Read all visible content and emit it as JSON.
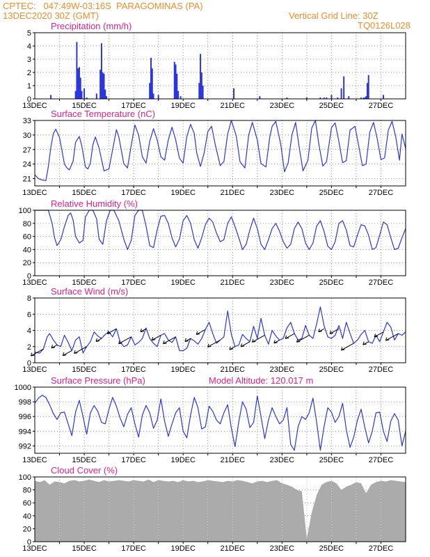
{
  "header": {
    "line1": "CPTEC:   047:49W-03:16S  PARAGOMINAS (PA)",
    "line2": "13DEC2020 30Z (GMT)",
    "grid_note": "Vertical Grid Line: 30Z",
    "code": "TQ0126L028"
  },
  "colors": {
    "header": "#f28c28",
    "title": "#e0208c",
    "series": "#2a35e0",
    "bars": "#2a35e0",
    "cloud": "#ababab",
    "grid": "#9a9a9a"
  },
  "x_ticks": [
    "13DEC",
    "15DEC",
    "17DEC",
    "19DEC",
    "21DEC",
    "23DEC",
    "25DEC",
    "27DEC"
  ],
  "chart_data": [
    {
      "id": "precip",
      "type": "bar",
      "title": "Precipitation (mm/h)",
      "xlim": [
        0,
        15
      ],
      "ylim": [
        0,
        5
      ],
      "yticks": [
        0,
        1,
        2,
        3,
        4,
        5
      ],
      "x": [
        0.65,
        1.65,
        1.7,
        1.75,
        1.8,
        1.85,
        1.9,
        2.0,
        2.1,
        2.5,
        2.65,
        2.7,
        2.75,
        2.8,
        2.85,
        2.9,
        4.65,
        4.7,
        4.75,
        4.8,
        5.0,
        5.65,
        5.7,
        5.75,
        5.8,
        5.9,
        6.65,
        6.7,
        6.75,
        6.8,
        8.05,
        9.1,
        10.2,
        11.0,
        11.55,
        11.7,
        11.8,
        12.0,
        12.25,
        12.4,
        12.5,
        12.7,
        13.2,
        13.3,
        13.35,
        13.4,
        13.45,
        13.5,
        14.1
      ],
      "values": [
        0.3,
        0.6,
        4.3,
        2.3,
        2.4,
        1.6,
        0.6,
        0.8,
        0.1,
        0.4,
        2.2,
        4.2,
        2.0,
        1.9,
        0.7,
        0.2,
        1.2,
        3.1,
        2.3,
        0.4,
        0.3,
        2.8,
        2.6,
        1.9,
        0.6,
        0.2,
        1.2,
        3.4,
        2.0,
        1.0,
        0.8,
        0.2,
        0.1,
        0.1,
        0.1,
        0.1,
        0.1,
        0.3,
        0.1,
        0.8,
        1.7,
        0.2,
        0.1,
        0.1,
        0.1,
        0.2,
        1.2,
        1.8,
        0.3
      ]
    },
    {
      "id": "temp",
      "type": "line",
      "title": "Surface Temperature (nC)",
      "xlim": [
        0,
        15
      ],
      "ylim": [
        19.5,
        33
      ],
      "yticks": [
        21,
        24,
        27,
        30,
        33
      ],
      "x": [
        0,
        0.15,
        0.3,
        0.45,
        0.55,
        0.65,
        0.75,
        0.85,
        1.0,
        1.1,
        1.2,
        1.3,
        1.4,
        1.55,
        1.65,
        1.8,
        1.9,
        2.05,
        2.15,
        2.25,
        2.35,
        2.45,
        2.6,
        2.8,
        3.0,
        3.15,
        3.3,
        3.4,
        3.6,
        3.75,
        3.9,
        4.05,
        4.2,
        4.35,
        4.5,
        4.65,
        4.8,
        4.95,
        5.1,
        5.25,
        5.4,
        5.55,
        5.7,
        5.85,
        6.0,
        6.15,
        6.3,
        6.45,
        6.55,
        6.7,
        6.85,
        7.0,
        7.15,
        7.3,
        7.5,
        7.65,
        7.8,
        7.95,
        8.15,
        8.3,
        8.5,
        8.65,
        8.8,
        9.0,
        9.15,
        9.35,
        9.5,
        9.6,
        9.75,
        9.95,
        10.1,
        10.25,
        10.4,
        10.55,
        10.7,
        10.85,
        11.05,
        11.2,
        11.35,
        11.5,
        11.65,
        11.8,
        12.0,
        12.15,
        12.3,
        12.45,
        12.6,
        12.75,
        12.95,
        13.1,
        13.25,
        13.4,
        13.55,
        13.7,
        13.85,
        14.0,
        14.15,
        14.3,
        14.45,
        14.6,
        14.75,
        14.85,
        15.0
      ],
      "values": [
        21.8,
        21.0,
        20.7,
        20.6,
        23.5,
        27.5,
        30.3,
        31.2,
        29.5,
        26.8,
        24.0,
        23.2,
        22.8,
        24.6,
        28.5,
        29.7,
        27.8,
        23.4,
        23.0,
        24.2,
        28.0,
        29.6,
        27.3,
        22.6,
        23.0,
        27.0,
        31.1,
        29.6,
        24.1,
        23.2,
        27.9,
        32.1,
        30.0,
        25.5,
        24.2,
        28.7,
        31.3,
        29.0,
        25.5,
        24.8,
        29.0,
        31.6,
        29.0,
        25.2,
        24.2,
        29.7,
        32.2,
        30.3,
        26.3,
        23.5,
        26.3,
        30.7,
        31.8,
        28.0,
        23.7,
        24.5,
        30.2,
        33.0,
        29.8,
        24.5,
        23.2,
        30.0,
        32.6,
        29.0,
        24.1,
        23.4,
        29.5,
        31.8,
        32.8,
        28.0,
        22.4,
        24.3,
        30.0,
        32.6,
        27.3,
        22.6,
        24.8,
        31.4,
        33.0,
        27.8,
        23.6,
        24.5,
        31.5,
        32.5,
        28.6,
        24.3,
        24.7,
        31.0,
        31.8,
        27.8,
        23.7,
        24.0,
        30.6,
        32.6,
        29.3,
        24.9,
        25.3,
        31.0,
        32.8,
        29.6,
        24.8,
        30.2,
        27.2
      ]
    },
    {
      "id": "rh",
      "type": "line",
      "title": "Relative Humidity (%)",
      "xlim": [
        0,
        15
      ],
      "ylim": [
        0,
        100
      ],
      "yticks": [
        0,
        20,
        40,
        60,
        80,
        100
      ],
      "x": [
        0,
        0.2,
        0.4,
        0.55,
        0.7,
        0.8,
        0.9,
        1.05,
        1.2,
        1.35,
        1.45,
        1.55,
        1.65,
        1.8,
        1.95,
        2.05,
        2.2,
        2.35,
        2.5,
        2.6,
        2.75,
        2.9,
        3.05,
        3.2,
        3.4,
        3.6,
        3.75,
        3.9,
        4.05,
        4.2,
        4.35,
        4.5,
        4.65,
        4.8,
        4.95,
        5.1,
        5.25,
        5.4,
        5.55,
        5.7,
        5.85,
        6.0,
        6.15,
        6.3,
        6.45,
        6.6,
        6.75,
        6.9,
        7.05,
        7.2,
        7.35,
        7.5,
        7.65,
        7.8,
        7.95,
        8.1,
        8.25,
        8.4,
        8.55,
        8.7,
        8.85,
        9.0,
        9.15,
        9.3,
        9.45,
        9.6,
        9.75,
        9.9,
        10.05,
        10.2,
        10.35,
        10.5,
        10.65,
        10.8,
        10.95,
        11.1,
        11.25,
        11.4,
        11.55,
        11.7,
        11.85,
        12.0,
        12.15,
        12.3,
        12.45,
        12.6,
        12.75,
        12.9,
        13.05,
        13.2,
        13.35,
        13.5,
        13.65,
        13.8,
        13.95,
        14.1,
        14.25,
        14.4,
        14.55,
        14.7,
        14.85,
        15.0
      ],
      "values": [
        100,
        100,
        100,
        100,
        80,
        58,
        46,
        55,
        75,
        92,
        96,
        85,
        60,
        50,
        54,
        90,
        100,
        100,
        87,
        56,
        48,
        84,
        100,
        100,
        84,
        56,
        40,
        54,
        92,
        100,
        100,
        76,
        46,
        43,
        70,
        91,
        92,
        80,
        58,
        44,
        56,
        84,
        92,
        80,
        55,
        42,
        58,
        78,
        88,
        82,
        65,
        52,
        55,
        80,
        90,
        75,
        58,
        40,
        48,
        70,
        88,
        72,
        48,
        40,
        55,
        72,
        80,
        68,
        52,
        42,
        48,
        72,
        82,
        72,
        50,
        40,
        50,
        76,
        84,
        68,
        45,
        40,
        52,
        80,
        84,
        70,
        46,
        44,
        62,
        78,
        76,
        62,
        40,
        43,
        62,
        82,
        78,
        58,
        40,
        42,
        58,
        72
      ]
    },
    {
      "id": "wind",
      "type": "line",
      "title": "Surface Wind (m/s)",
      "xlim": [
        0,
        15
      ],
      "ylim": [
        0,
        8
      ],
      "yticks": [
        0,
        2,
        4,
        6,
        8
      ],
      "x": [
        0,
        0.2,
        0.35,
        0.5,
        0.6,
        0.75,
        0.9,
        1.05,
        1.2,
        1.35,
        1.5,
        1.65,
        1.8,
        1.95,
        2.1,
        2.25,
        2.4,
        2.55,
        2.7,
        2.85,
        3.0,
        3.15,
        3.3,
        3.45,
        3.6,
        3.75,
        3.9,
        4.05,
        4.2,
        4.35,
        4.5,
        4.65,
        4.8,
        4.95,
        5.1,
        5.25,
        5.4,
        5.55,
        5.7,
        5.85,
        6.0,
        6.15,
        6.3,
        6.45,
        6.6,
        6.75,
        6.9,
        7.05,
        7.2,
        7.35,
        7.5,
        7.65,
        7.8,
        7.95,
        8.1,
        8.25,
        8.4,
        8.55,
        8.7,
        8.85,
        9.0,
        9.15,
        9.3,
        9.45,
        9.6,
        9.75,
        9.9,
        10.05,
        10.2,
        10.35,
        10.5,
        10.65,
        10.8,
        10.95,
        11.1,
        11.25,
        11.4,
        11.55,
        11.7,
        11.85,
        12.0,
        12.15,
        12.3,
        12.45,
        12.6,
        12.75,
        12.9,
        13.05,
        13.2,
        13.35,
        13.5,
        13.65,
        13.8,
        13.95,
        14.1,
        14.25,
        14.4,
        14.55,
        14.7,
        14.85,
        15.0
      ],
      "values": [
        1.3,
        1.2,
        1.7,
        3.2,
        3.6,
        2.8,
        2.2,
        2.0,
        3.4,
        2.5,
        1.5,
        2.8,
        3.2,
        1.2,
        2.0,
        2.6,
        3.8,
        3.3,
        3.0,
        3.5,
        3.8,
        3.2,
        4.2,
        2.6,
        2.0,
        2.2,
        3.2,
        2.2,
        2.5,
        3.0,
        4.3,
        3.0,
        2.4,
        2.0,
        3.4,
        3.6,
        2.8,
        2.5,
        3.2,
        1.5,
        1.5,
        1.8,
        3.0,
        2.7,
        2.3,
        3.0,
        4.1,
        5.0,
        3.6,
        2.4,
        2.8,
        3.2,
        6.4,
        3.5,
        2.0,
        2.2,
        3.5,
        3.0,
        2.6,
        4.5,
        3.0,
        5.5,
        3.4,
        2.3,
        4.0,
        3.3,
        2.8,
        3.0,
        4.3,
        5.0,
        3.6,
        2.8,
        3.0,
        4.6,
        3.4,
        3.0,
        4.8,
        6.9,
        4.6,
        3.2,
        3.0,
        3.4,
        4.6,
        3.0,
        5.0,
        3.6,
        2.4,
        2.8,
        3.5,
        4.0,
        2.6,
        2.4,
        3.4,
        2.6,
        3.8,
        5.0,
        4.4,
        2.8,
        3.6,
        3.4,
        3.8
      ]
    },
    {
      "id": "pressure",
      "type": "line",
      "title": "Surface Pressure (hPa)",
      "note": "Model Altitude: 120.017 m",
      "xlim": [
        0,
        15
      ],
      "ylim": [
        991,
        1000
      ],
      "yticks": [
        992,
        994,
        996,
        998,
        1000
      ],
      "x": [
        0,
        0.15,
        0.3,
        0.45,
        0.6,
        0.75,
        0.9,
        1.05,
        1.2,
        1.35,
        1.5,
        1.65,
        1.8,
        1.95,
        2.1,
        2.25,
        2.4,
        2.55,
        2.7,
        2.85,
        3.0,
        3.15,
        3.3,
        3.45,
        3.6,
        3.75,
        3.9,
        4.05,
        4.2,
        4.35,
        4.5,
        4.65,
        4.8,
        4.95,
        5.1,
        5.25,
        5.4,
        5.55,
        5.7,
        5.85,
        6.0,
        6.15,
        6.3,
        6.45,
        6.6,
        6.75,
        6.9,
        7.05,
        7.2,
        7.35,
        7.5,
        7.65,
        7.8,
        7.95,
        8.1,
        8.25,
        8.4,
        8.55,
        8.7,
        8.85,
        9.0,
        9.15,
        9.3,
        9.45,
        9.6,
        9.75,
        9.9,
        10.05,
        10.2,
        10.35,
        10.5,
        10.65,
        10.8,
        10.95,
        11.1,
        11.25,
        11.4,
        11.55,
        11.7,
        11.85,
        12.0,
        12.15,
        12.3,
        12.45,
        12.6,
        12.75,
        12.9,
        13.05,
        13.2,
        13.35,
        13.5,
        13.65,
        13.8,
        13.95,
        14.1,
        14.25,
        14.4,
        14.55,
        14.7,
        14.85,
        15.0
      ],
      "values": [
        997.8,
        998.5,
        998.9,
        998.6,
        997.6,
        996.4,
        995.6,
        996.5,
        996.6,
        995.0,
        993.4,
        996.6,
        998.2,
        996.0,
        993.6,
        996.5,
        997.5,
        996.7,
        995.2,
        995.0,
        997.0,
        998.6,
        997.4,
        995.8,
        994.6,
        996.3,
        997.2,
        995.0,
        993.2,
        996.2,
        997.5,
        996.5,
        994.4,
        995.5,
        998.4,
        995.4,
        993.3,
        995.0,
        996.5,
        997.2,
        994.0,
        993.1,
        996.2,
        998.6,
        997.2,
        994.3,
        994.6,
        997.4,
        996.7,
        995.5,
        995.0,
        996.5,
        997.6,
        994.4,
        991.9,
        995.3,
        998.0,
        997.0,
        994.5,
        995.2,
        998.8,
        996.0,
        993.0,
        995.5,
        997.2,
        996.0,
        995.0,
        995.5,
        997.2,
        992.2,
        991.4,
        994.6,
        996.0,
        995.6,
        996.5,
        998.5,
        995.2,
        991.4,
        994.6,
        997.2,
        996.6,
        995.2,
        996.0,
        997.8,
        994.2,
        991.8,
        993.2,
        995.5,
        997.0,
        994.5,
        992.4,
        994.0,
        996.5,
        996.6,
        994.0,
        992.6,
        995.4,
        996.4,
        995.5,
        992.0,
        994.0
      ]
    },
    {
      "id": "cloud",
      "type": "area",
      "title": "Cloud Cover (%)",
      "xlim": [
        0,
        15
      ],
      "ylim": [
        0,
        100
      ],
      "yticks": [
        0,
        20,
        40,
        60,
        80,
        100
      ],
      "x": [
        0,
        0.2,
        0.4,
        0.6,
        0.8,
        1.0,
        1.2,
        1.4,
        1.6,
        1.8,
        2.0,
        2.2,
        2.4,
        2.6,
        2.8,
        3.0,
        3.2,
        3.4,
        3.6,
        3.8,
        4.0,
        4.2,
        4.4,
        4.6,
        4.8,
        5.0,
        5.2,
        5.4,
        5.6,
        5.8,
        6.0,
        6.2,
        6.4,
        6.6,
        6.8,
        7.0,
        7.2,
        7.4,
        7.6,
        7.8,
        8.0,
        8.2,
        8.4,
        8.6,
        8.8,
        9.0,
        9.2,
        9.4,
        9.6,
        9.8,
        10.0,
        10.2,
        10.4,
        10.6,
        10.8,
        11.0,
        11.2,
        11.4,
        11.6,
        11.8,
        12.0,
        12.2,
        12.4,
        12.6,
        12.8,
        13.0,
        13.2,
        13.4,
        13.6,
        13.8,
        14.0,
        14.2,
        14.4,
        14.6,
        14.8,
        15.0
      ],
      "values": [
        94,
        92,
        95,
        88,
        93,
        92,
        90,
        94,
        95,
        93,
        94,
        96,
        94,
        92,
        95,
        93,
        94,
        95,
        94,
        93,
        95,
        94,
        93,
        96,
        92,
        95,
        94,
        93,
        94,
        92,
        95,
        93,
        94,
        92,
        93,
        95,
        94,
        93,
        92,
        94,
        93,
        95,
        94,
        92,
        90,
        93,
        94,
        92,
        94,
        95,
        90,
        88,
        85,
        80,
        78,
        5,
        45,
        72,
        88,
        92,
        94,
        90,
        80,
        85,
        88,
        92,
        90,
        75,
        88,
        92,
        94,
        93,
        95,
        94,
        93,
        92
      ]
    }
  ]
}
